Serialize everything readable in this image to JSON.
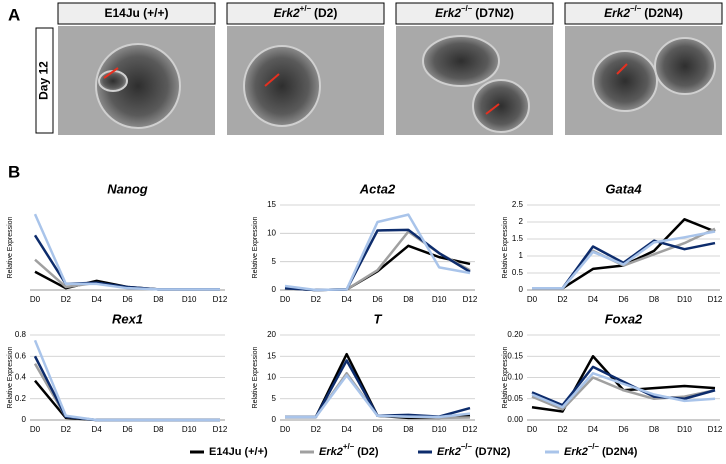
{
  "figure_a": {
    "label": "A",
    "side_label": "Day 12",
    "panels": [
      {
        "text": "E14Ju (+/+)"
      },
      {
        "gene": "Erk2",
        "sup": "+/–",
        "suffix": "(D2)"
      },
      {
        "gene": "Erk2",
        "sup": "–/–",
        "suffix": "(D7N2)"
      },
      {
        "gene": "Erk2",
        "sup": "–/–",
        "suffix": "(D2N4)"
      }
    ]
  },
  "figure_b_label": "B",
  "legend": [
    {
      "text": "E14Ju (+/+)",
      "color": "#000000"
    },
    {
      "gene": "Erk2",
      "sup": "+/–",
      "suffix": "(D2)",
      "color": "#a0a0a0"
    },
    {
      "gene": "Erk2",
      "sup": "–/–",
      "suffix": "(D7N2)",
      "color": "#0d2c6c"
    },
    {
      "gene": "Erk2",
      "sup": "–/–",
      "suffix": "(D2N4)",
      "color": "#a9c4ea"
    }
  ],
  "chart_data": [
    {
      "type": "line",
      "title": "Nanog",
      "y_label": "Relative Expression",
      "categories": [
        "D0",
        "D2",
        "D4",
        "D6",
        "D8",
        "D10",
        "D12"
      ],
      "ylim": [
        0,
        1.4
      ],
      "series": [
        {
          "values": [
            0.3,
            0.03,
            0.15,
            0.05,
            0.01,
            0.01,
            0.01
          ]
        },
        {
          "values": [
            0.5,
            0.05,
            0.12,
            0.04,
            0.01,
            0.01,
            0.01
          ]
        },
        {
          "values": [
            0.9,
            0.1,
            0.12,
            0.05,
            0.01,
            0.01,
            0.01
          ]
        },
        {
          "values": [
            1.25,
            0.1,
            0.1,
            0.03,
            0.01,
            0.01,
            0.01
          ]
        }
      ]
    },
    {
      "type": "line",
      "title": "Acta2",
      "y_label": "Relative Expression",
      "categories": [
        "D0",
        "D2",
        "D4",
        "D6",
        "D8",
        "D10",
        "D12"
      ],
      "ylim": [
        0,
        15
      ],
      "yticks": [
        0,
        5,
        10,
        15
      ],
      "series": [
        {
          "values": [
            0.3,
            0,
            0.1,
            3.3,
            7.8,
            5.8,
            4.6
          ]
        },
        {
          "values": [
            0.3,
            0,
            0.1,
            3.5,
            10.3,
            6.5,
            3.5
          ]
        },
        {
          "values": [
            0.3,
            0,
            0.1,
            10.5,
            10.6,
            6.5,
            3.2
          ]
        },
        {
          "values": [
            0.7,
            0,
            0.1,
            12,
            13.3,
            4,
            3
          ]
        }
      ]
    },
    {
      "type": "line",
      "title": "Gata4",
      "y_label": "Relative Expression",
      "categories": [
        "D0",
        "D2",
        "D4",
        "D6",
        "D8",
        "D10",
        "D12"
      ],
      "ylim": [
        0,
        2.5
      ],
      "yticks": [
        0,
        0.5,
        1,
        1.5,
        2,
        2.5
      ],
      "series": [
        {
          "values": [
            0.05,
            0.05,
            0.62,
            0.72,
            1.15,
            2.08,
            1.72
          ]
        },
        {
          "values": [
            0.05,
            0.05,
            1.15,
            0.72,
            1.05,
            1.38,
            1.8
          ]
        },
        {
          "values": [
            0.05,
            0.05,
            1.28,
            0.8,
            1.45,
            1.2,
            1.38
          ]
        },
        {
          "values": [
            0.05,
            0.05,
            1.12,
            0.75,
            1.4,
            1.55,
            1.72
          ]
        }
      ]
    },
    {
      "type": "line",
      "title": "Rex1",
      "y_label": "Relative Expression",
      "categories": [
        "D0",
        "D2",
        "D4",
        "D6",
        "D8",
        "D10",
        "D12"
      ],
      "ylim": [
        0,
        0.8
      ],
      "yticks": [
        0,
        0.2,
        0.4,
        0.6,
        0.8
      ],
      "series": [
        {
          "values": [
            0.37,
            0.02,
            0,
            0,
            0,
            0,
            0
          ]
        },
        {
          "values": [
            0.53,
            0.03,
            0,
            0,
            0,
            0,
            0
          ]
        },
        {
          "values": [
            0.6,
            0.03,
            0,
            0,
            0,
            0,
            0
          ]
        },
        {
          "values": [
            0.75,
            0.04,
            0,
            0,
            0,
            0,
            0
          ]
        }
      ]
    },
    {
      "type": "line",
      "title": "T",
      "y_label": "Relative Expression",
      "categories": [
        "D0",
        "D2",
        "D4",
        "D6",
        "D8",
        "D10",
        "D12"
      ],
      "ylim": [
        0,
        20
      ],
      "yticks": [
        0,
        5,
        10,
        15,
        20
      ],
      "series": [
        {
          "values": [
            0.7,
            0.7,
            15.5,
            1,
            0.5,
            0.5,
            1
          ]
        },
        {
          "values": [
            0.7,
            0.7,
            11,
            1,
            0.8,
            0.5,
            0.6
          ]
        },
        {
          "values": [
            0.7,
            0.7,
            14,
            1,
            1.2,
            0.8,
            2.8
          ]
        },
        {
          "values": [
            0.7,
            0.7,
            10.5,
            1,
            0.8,
            0.7,
            1.5
          ]
        }
      ]
    },
    {
      "type": "line",
      "title": "Foxa2",
      "y_label": "Relative Expression",
      "categories": [
        "D0",
        "D2",
        "D4",
        "D6",
        "D8",
        "D10",
        "D12"
      ],
      "ylim": [
        0,
        0.2
      ],
      "yticks": [
        {
          "value": 0,
          "label": "0.00"
        },
        {
          "value": 0.05,
          "label": "0.05"
        },
        {
          "value": 0.1,
          "label": "0.10"
        },
        {
          "value": 0.15,
          "label": "0.15"
        },
        {
          "value": 0.2,
          "label": "0.20"
        }
      ],
      "series": [
        {
          "values": [
            0.03,
            0.02,
            0.15,
            0.07,
            0.075,
            0.08,
            0.075
          ]
        },
        {
          "values": [
            0.055,
            0.025,
            0.1,
            0.07,
            0.05,
            0.055,
            0.07
          ]
        },
        {
          "values": [
            0.065,
            0.035,
            0.125,
            0.09,
            0.055,
            0.05,
            0.07
          ]
        },
        {
          "values": [
            0.06,
            0.03,
            0.11,
            0.085,
            0.06,
            0.045,
            0.05
          ]
        }
      ]
    }
  ]
}
